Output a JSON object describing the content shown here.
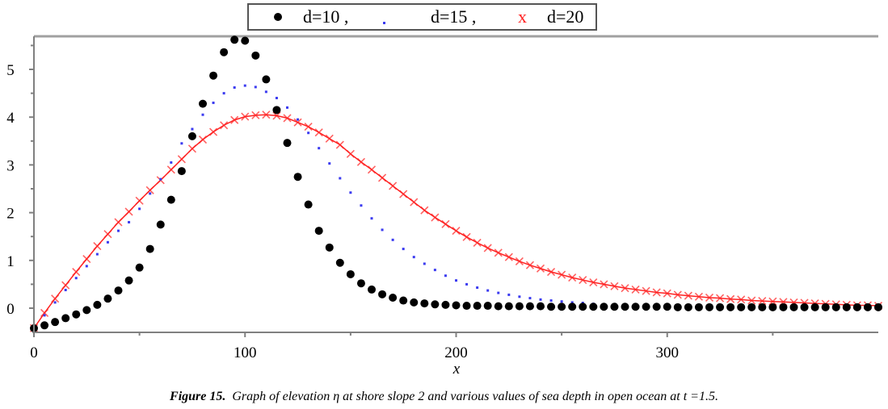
{
  "chart_data": {
    "type": "scatter",
    "title": "",
    "xlabel": "x",
    "ylabel": "",
    "xlim": [
      0,
      400
    ],
    "ylim": [
      -0.5,
      5.7
    ],
    "xticks": [
      "0",
      "100",
      "200",
      "300"
    ],
    "xtick_values": [
      0,
      100,
      200,
      300
    ],
    "yticks": [
      "0",
      "1",
      "2",
      "3",
      "4",
      "5"
    ],
    "ytick_values": [
      0,
      1,
      2,
      3,
      4,
      5
    ],
    "grid": false,
    "legend_position": "top-center",
    "legend": [
      {
        "marker": "●",
        "label": "d=10 ,"
      },
      {
        "marker": ".",
        "label": "d=15 ,"
      },
      {
        "marker": "x",
        "label": "d=20"
      }
    ],
    "x": [
      0,
      5,
      10,
      15,
      20,
      25,
      30,
      35,
      40,
      45,
      50,
      55,
      60,
      65,
      70,
      75,
      80,
      85,
      90,
      95,
      100,
      105,
      110,
      115,
      120,
      125,
      130,
      135,
      140,
      145,
      150,
      155,
      160,
      165,
      170,
      175,
      180,
      185,
      190,
      195,
      200,
      205,
      210,
      215,
      220,
      225,
      230,
      235,
      240,
      245,
      250,
      255,
      260,
      265,
      270,
      275,
      280,
      285,
      290,
      295,
      300,
      305,
      310,
      315,
      320,
      325,
      330,
      335,
      340,
      345,
      350,
      355,
      360,
      365,
      370,
      375,
      380,
      385,
      390,
      395,
      400
    ],
    "series": [
      {
        "name": "d=10",
        "color": "#000000",
        "marker": "circle",
        "values": [
          -0.42,
          -0.36,
          -0.29,
          -0.21,
          -0.13,
          -0.04,
          0.07,
          0.2,
          0.37,
          0.58,
          0.85,
          1.24,
          1.75,
          2.27,
          2.87,
          3.6,
          4.28,
          4.87,
          5.36,
          5.62,
          5.6,
          5.29,
          4.79,
          4.15,
          3.46,
          2.75,
          2.17,
          1.62,
          1.27,
          0.95,
          0.71,
          0.52,
          0.39,
          0.29,
          0.22,
          0.16,
          0.12,
          0.1,
          0.08,
          0.07,
          0.06,
          0.05,
          0.05,
          0.05,
          0.04,
          0.04,
          0.04,
          0.04,
          0.04,
          0.03,
          0.03,
          0.03,
          0.03,
          0.03,
          0.03,
          0.03,
          0.03,
          0.03,
          0.03,
          0.03,
          0.03,
          0.02,
          0.02,
          0.02,
          0.02,
          0.02,
          0.02,
          0.02,
          0.02,
          0.02,
          0.02,
          0.02,
          0.02,
          0.02,
          0.02,
          0.02,
          0.02,
          0.02,
          0.02,
          0.02,
          0.02
        ]
      },
      {
        "name": "d=15",
        "color": "#3b3bf0",
        "marker": "point",
        "values": [
          -0.42,
          -0.15,
          0.12,
          0.38,
          0.63,
          0.88,
          1.13,
          1.38,
          1.62,
          1.8,
          2.08,
          2.4,
          2.7,
          3.05,
          3.45,
          3.75,
          4.05,
          4.3,
          4.5,
          4.62,
          4.66,
          4.63,
          4.53,
          4.4,
          4.2,
          3.95,
          3.67,
          3.35,
          3.03,
          2.72,
          2.42,
          2.15,
          1.88,
          1.64,
          1.43,
          1.24,
          1.07,
          0.93,
          0.8,
          0.68,
          0.58,
          0.5,
          0.43,
          0.37,
          0.32,
          0.28,
          0.24,
          0.21,
          0.18,
          0.16,
          0.14,
          0.12,
          0.11,
          0.09,
          0.08,
          0.07,
          0.06,
          0.06,
          0.05,
          0.05,
          0.04,
          0.04,
          0.03,
          0.03,
          0.03,
          0.03,
          0.02,
          0.02,
          0.02,
          0.02,
          0.02,
          0.02,
          0.02,
          0.01,
          0.01,
          0.01,
          0.01,
          0.01,
          0.01,
          0.01,
          0.01
        ]
      },
      {
        "name": "d=20",
        "color": "#ff2020",
        "marker": "x",
        "values": [
          -0.42,
          -0.1,
          0.2,
          0.48,
          0.76,
          1.03,
          1.3,
          1.55,
          1.8,
          2.02,
          2.25,
          2.47,
          2.68,
          2.9,
          3.12,
          3.34,
          3.53,
          3.69,
          3.83,
          3.94,
          4.01,
          4.04,
          4.05,
          4.03,
          3.98,
          3.89,
          3.8,
          3.68,
          3.55,
          3.42,
          3.23,
          3.06,
          2.9,
          2.73,
          2.56,
          2.39,
          2.22,
          2.05,
          1.9,
          1.76,
          1.62,
          1.49,
          1.37,
          1.26,
          1.16,
          1.07,
          0.98,
          0.9,
          0.83,
          0.76,
          0.7,
          0.64,
          0.59,
          0.54,
          0.5,
          0.46,
          0.42,
          0.39,
          0.36,
          0.33,
          0.31,
          0.28,
          0.26,
          0.24,
          0.22,
          0.21,
          0.19,
          0.18,
          0.16,
          0.15,
          0.14,
          0.13,
          0.12,
          0.11,
          0.1,
          0.09,
          0.08,
          0.07,
          0.06,
          0.06,
          0.05
        ]
      }
    ]
  },
  "caption": {
    "label": "Figure 15.",
    "text": "Graph of elevation η at shore slope 2 and various values of sea depth in open ocean at t =1.5."
  }
}
